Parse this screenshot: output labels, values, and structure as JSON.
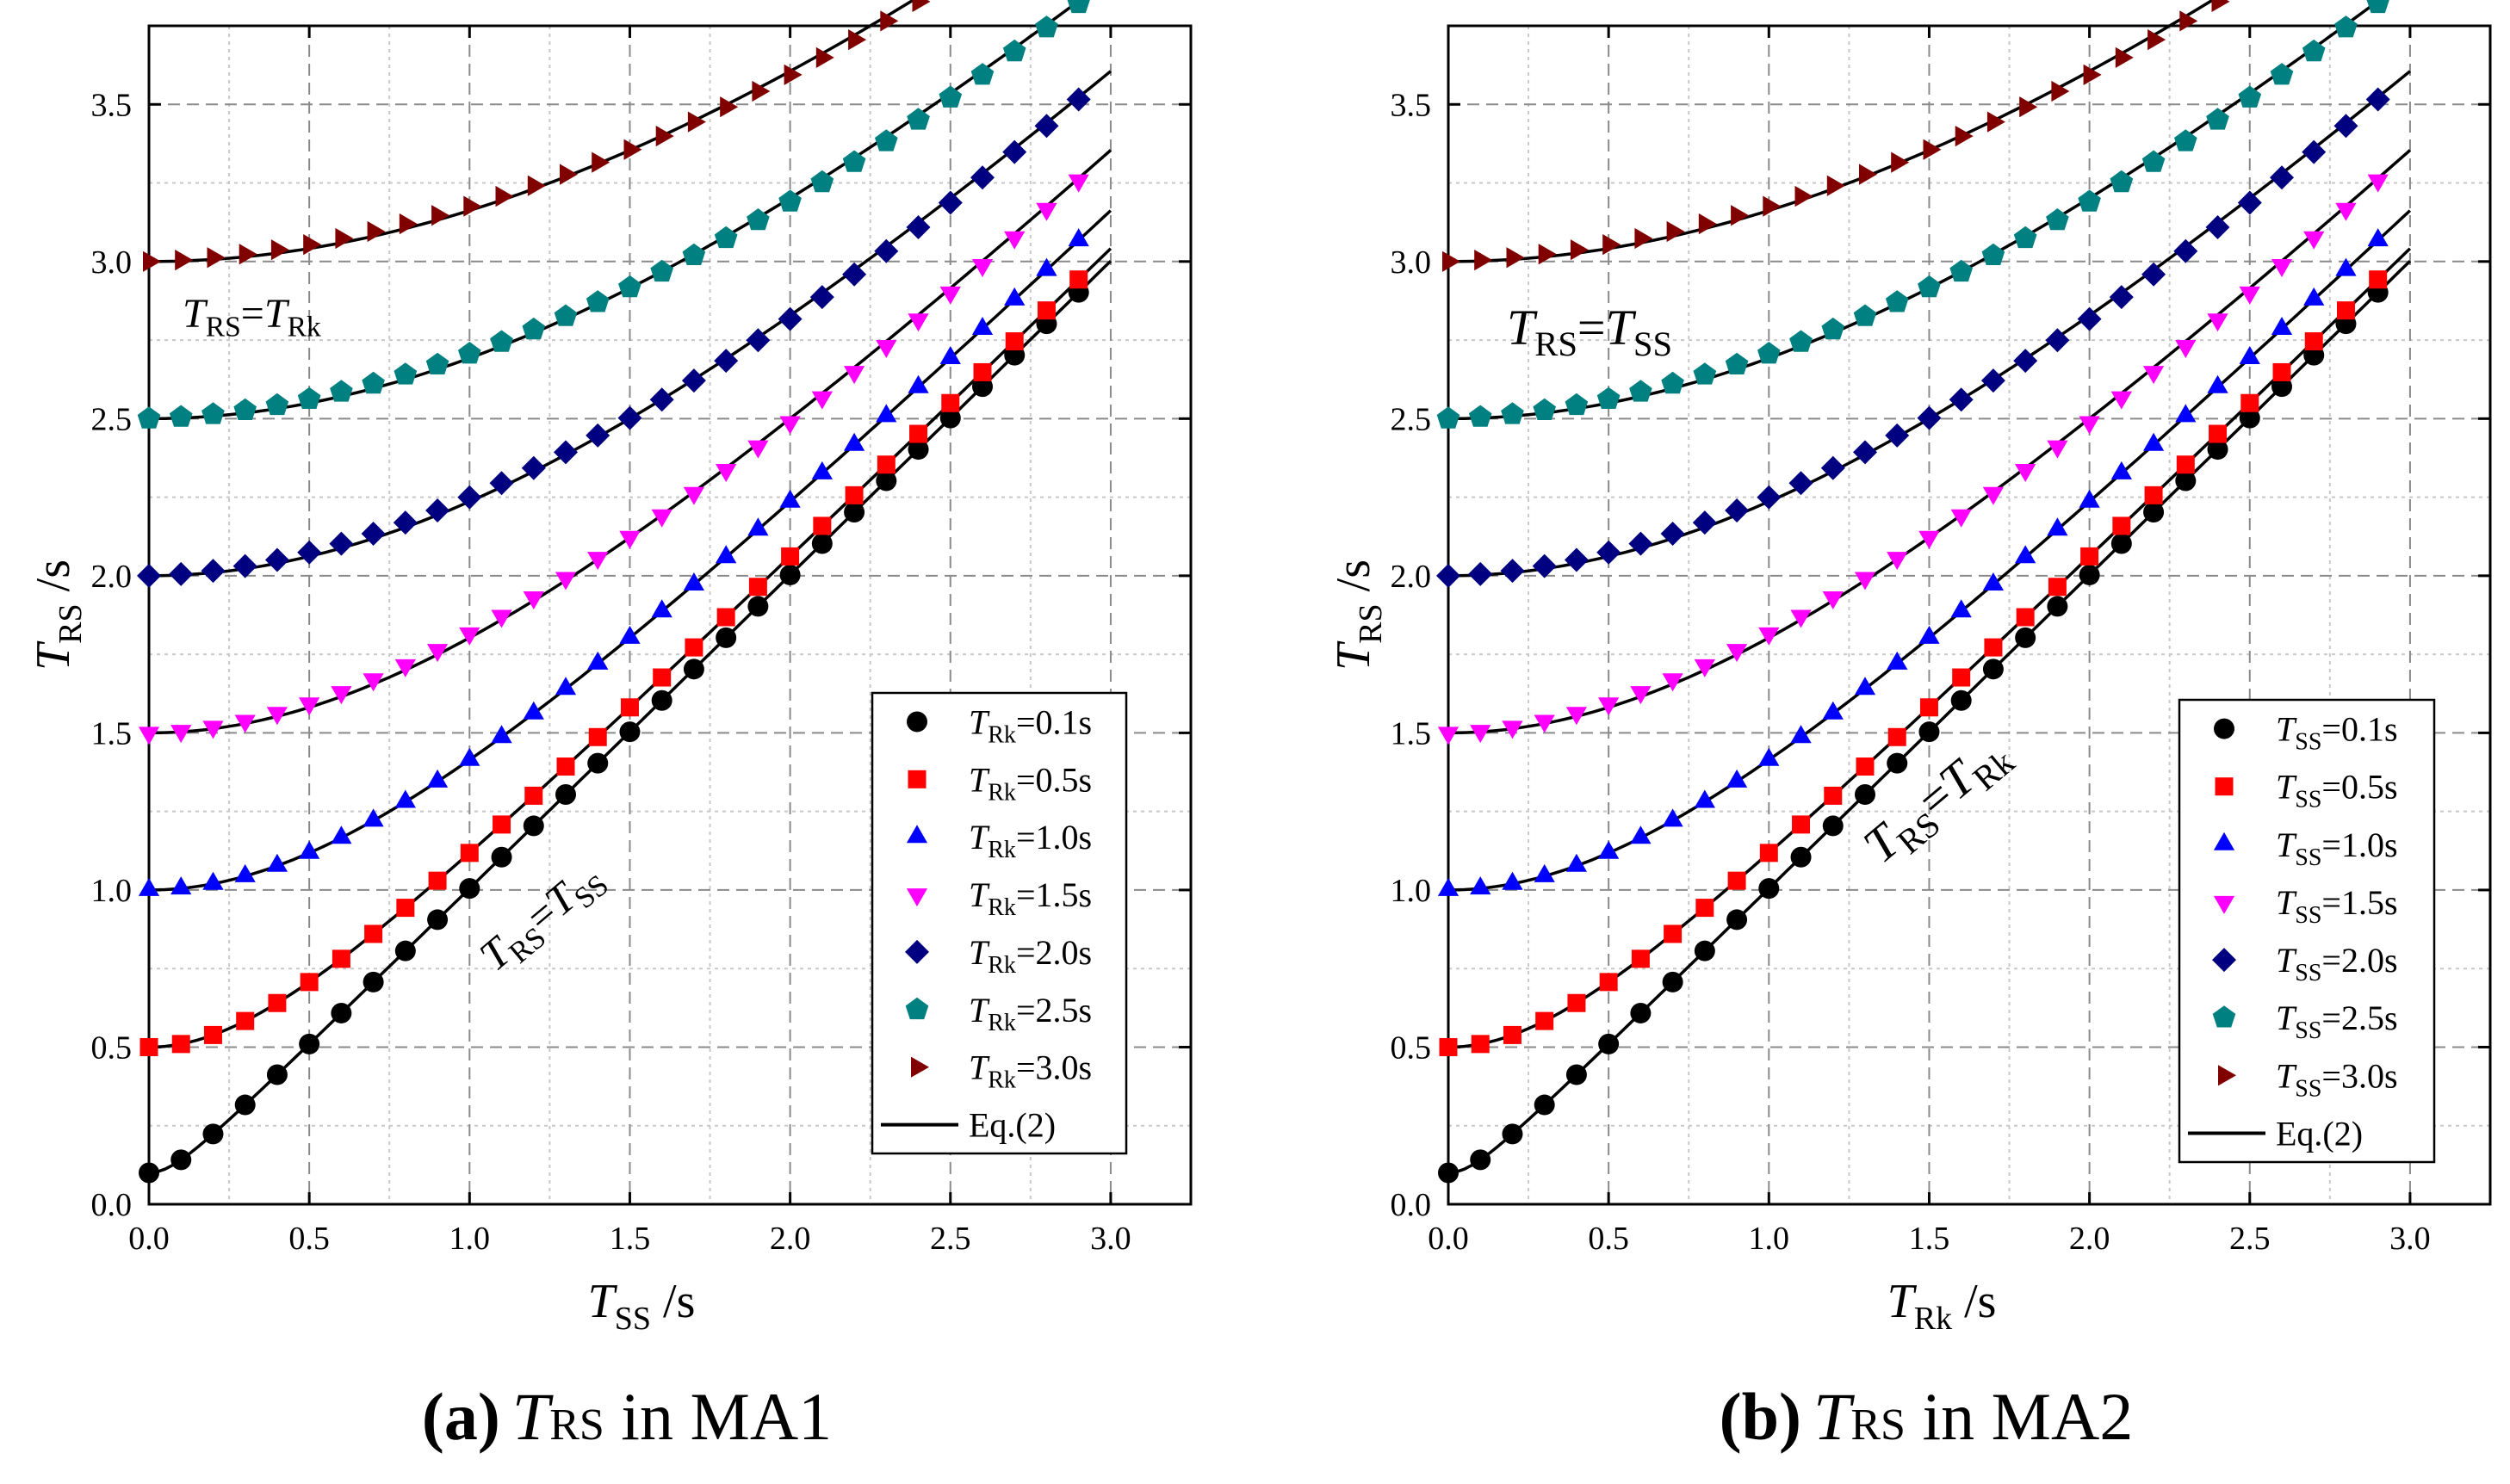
{
  "chart_data": [
    {
      "type": "scatter",
      "caption": {
        "letter": "(a)",
        "var_main": "T",
        "var_sub": "RS",
        "rest": " in MA1"
      },
      "xlabel": {
        "main": "T",
        "sub": "SS",
        "unit": " /s"
      },
      "ylabel": {
        "main": "T",
        "sub": "RS",
        "unit": " /s"
      },
      "xlim": [
        0,
        3.25
      ],
      "ylim": [
        0,
        3.75
      ],
      "xticks": [
        "0.0",
        "0.5",
        "1.0",
        "1.5",
        "2.0",
        "2.5",
        "3.0"
      ],
      "yticks": [
        "0.0",
        "0.5",
        "1.0",
        "1.5",
        "2.0",
        "2.5",
        "3.0",
        "3.5"
      ],
      "grid": true,
      "legend": {
        "position": "bottom-right",
        "param_main": "T",
        "param_sub": "Rk",
        "fit_label": "Eq.(2)"
      },
      "annotations": [
        {
          "a": "T",
          "asub": "RS",
          "eq": "=",
          "b": "T",
          "bsub": "Rk"
        },
        {
          "a": "T",
          "asub": "RS",
          "eq": "=",
          "b": "T",
          "bsub": "SS"
        }
      ],
      "series": [
        {
          "name": "=0.1s",
          "param": 0.1,
          "marker": "circle",
          "color": "#000000"
        },
        {
          "name": "=0.5s",
          "param": 0.5,
          "marker": "square",
          "color": "#ff0000"
        },
        {
          "name": "=1.0s",
          "param": 1.0,
          "marker": "triangle-up",
          "color": "#0000ff"
        },
        {
          "name": "=1.5s",
          "param": 1.5,
          "marker": "triangle-down",
          "color": "#ff00ff"
        },
        {
          "name": "=2.0s",
          "param": 2.0,
          "marker": "diamond",
          "color": "#000080"
        },
        {
          "name": "=2.5s",
          "param": 2.5,
          "marker": "pentagon",
          "color": "#008080"
        },
        {
          "name": "=3.0s",
          "param": 3.0,
          "marker": "triangle-right",
          "color": "#800000"
        }
      ],
      "x_points": [
        0,
        0.1,
        0.2,
        0.3,
        0.4,
        0.5,
        0.6,
        0.7,
        0.8,
        0.9,
        1.0,
        1.1,
        1.2,
        1.3,
        1.4,
        1.5,
        1.6,
        1.7,
        1.8,
        1.9,
        2.0,
        2.1,
        2.2,
        2.3,
        2.4,
        2.5,
        2.6,
        2.7,
        2.8,
        2.9
      ],
      "fit_relation": "T_RS = sqrt(T_SS^2 + param^2)",
      "fit_x_range": [
        0,
        3.0
      ]
    },
    {
      "type": "scatter",
      "caption": {
        "letter": "(b)",
        "var_main": "T",
        "var_sub": "RS",
        "rest": " in MA2"
      },
      "xlabel": {
        "main": "T",
        "sub": "Rk",
        "unit": " /s"
      },
      "ylabel": {
        "main": "T",
        "sub": "RS",
        "unit": " /s"
      },
      "xlim": [
        0,
        3.25
      ],
      "ylim": [
        0,
        3.75
      ],
      "xticks": [
        "0.0",
        "0.5",
        "1.0",
        "1.5",
        "2.0",
        "2.5",
        "3.0"
      ],
      "yticks": [
        "0.0",
        "0.5",
        "1.0",
        "1.5",
        "2.0",
        "2.5",
        "3.0",
        "3.5"
      ],
      "grid": true,
      "legend": {
        "position": "bottom-right",
        "param_main": "T",
        "param_sub": "SS",
        "fit_label": "Eq.(2)"
      },
      "annotations": [
        {
          "a": "T",
          "asub": "RS",
          "eq": "=",
          "b": "T",
          "bsub": "SS"
        },
        {
          "a": "T",
          "asub": "RS",
          "eq": "=",
          "b": "T",
          "bsub": "Rk"
        }
      ],
      "series": [
        {
          "name": "=0.1s",
          "param": 0.1,
          "marker": "circle",
          "color": "#000000"
        },
        {
          "name": "=0.5s",
          "param": 0.5,
          "marker": "square",
          "color": "#ff0000"
        },
        {
          "name": "=1.0s",
          "param": 1.0,
          "marker": "triangle-up",
          "color": "#0000ff"
        },
        {
          "name": "=1.5s",
          "param": 1.5,
          "marker": "triangle-down",
          "color": "#ff00ff"
        },
        {
          "name": "=2.0s",
          "param": 2.0,
          "marker": "diamond",
          "color": "#000080"
        },
        {
          "name": "=2.5s",
          "param": 2.5,
          "marker": "pentagon",
          "color": "#008080"
        },
        {
          "name": "=3.0s",
          "param": 3.0,
          "marker": "triangle-right",
          "color": "#800000"
        }
      ],
      "x_points": [
        0,
        0.1,
        0.2,
        0.3,
        0.4,
        0.5,
        0.6,
        0.7,
        0.8,
        0.9,
        1.0,
        1.1,
        1.2,
        1.3,
        1.4,
        1.5,
        1.6,
        1.7,
        1.8,
        1.9,
        2.0,
        2.1,
        2.2,
        2.3,
        2.4,
        2.5,
        2.6,
        2.7,
        2.8,
        2.9
      ],
      "fit_relation": "T_RS = sqrt(T_Rk^2 + param^2)",
      "fit_x_range": [
        0,
        3.0
      ]
    }
  ]
}
